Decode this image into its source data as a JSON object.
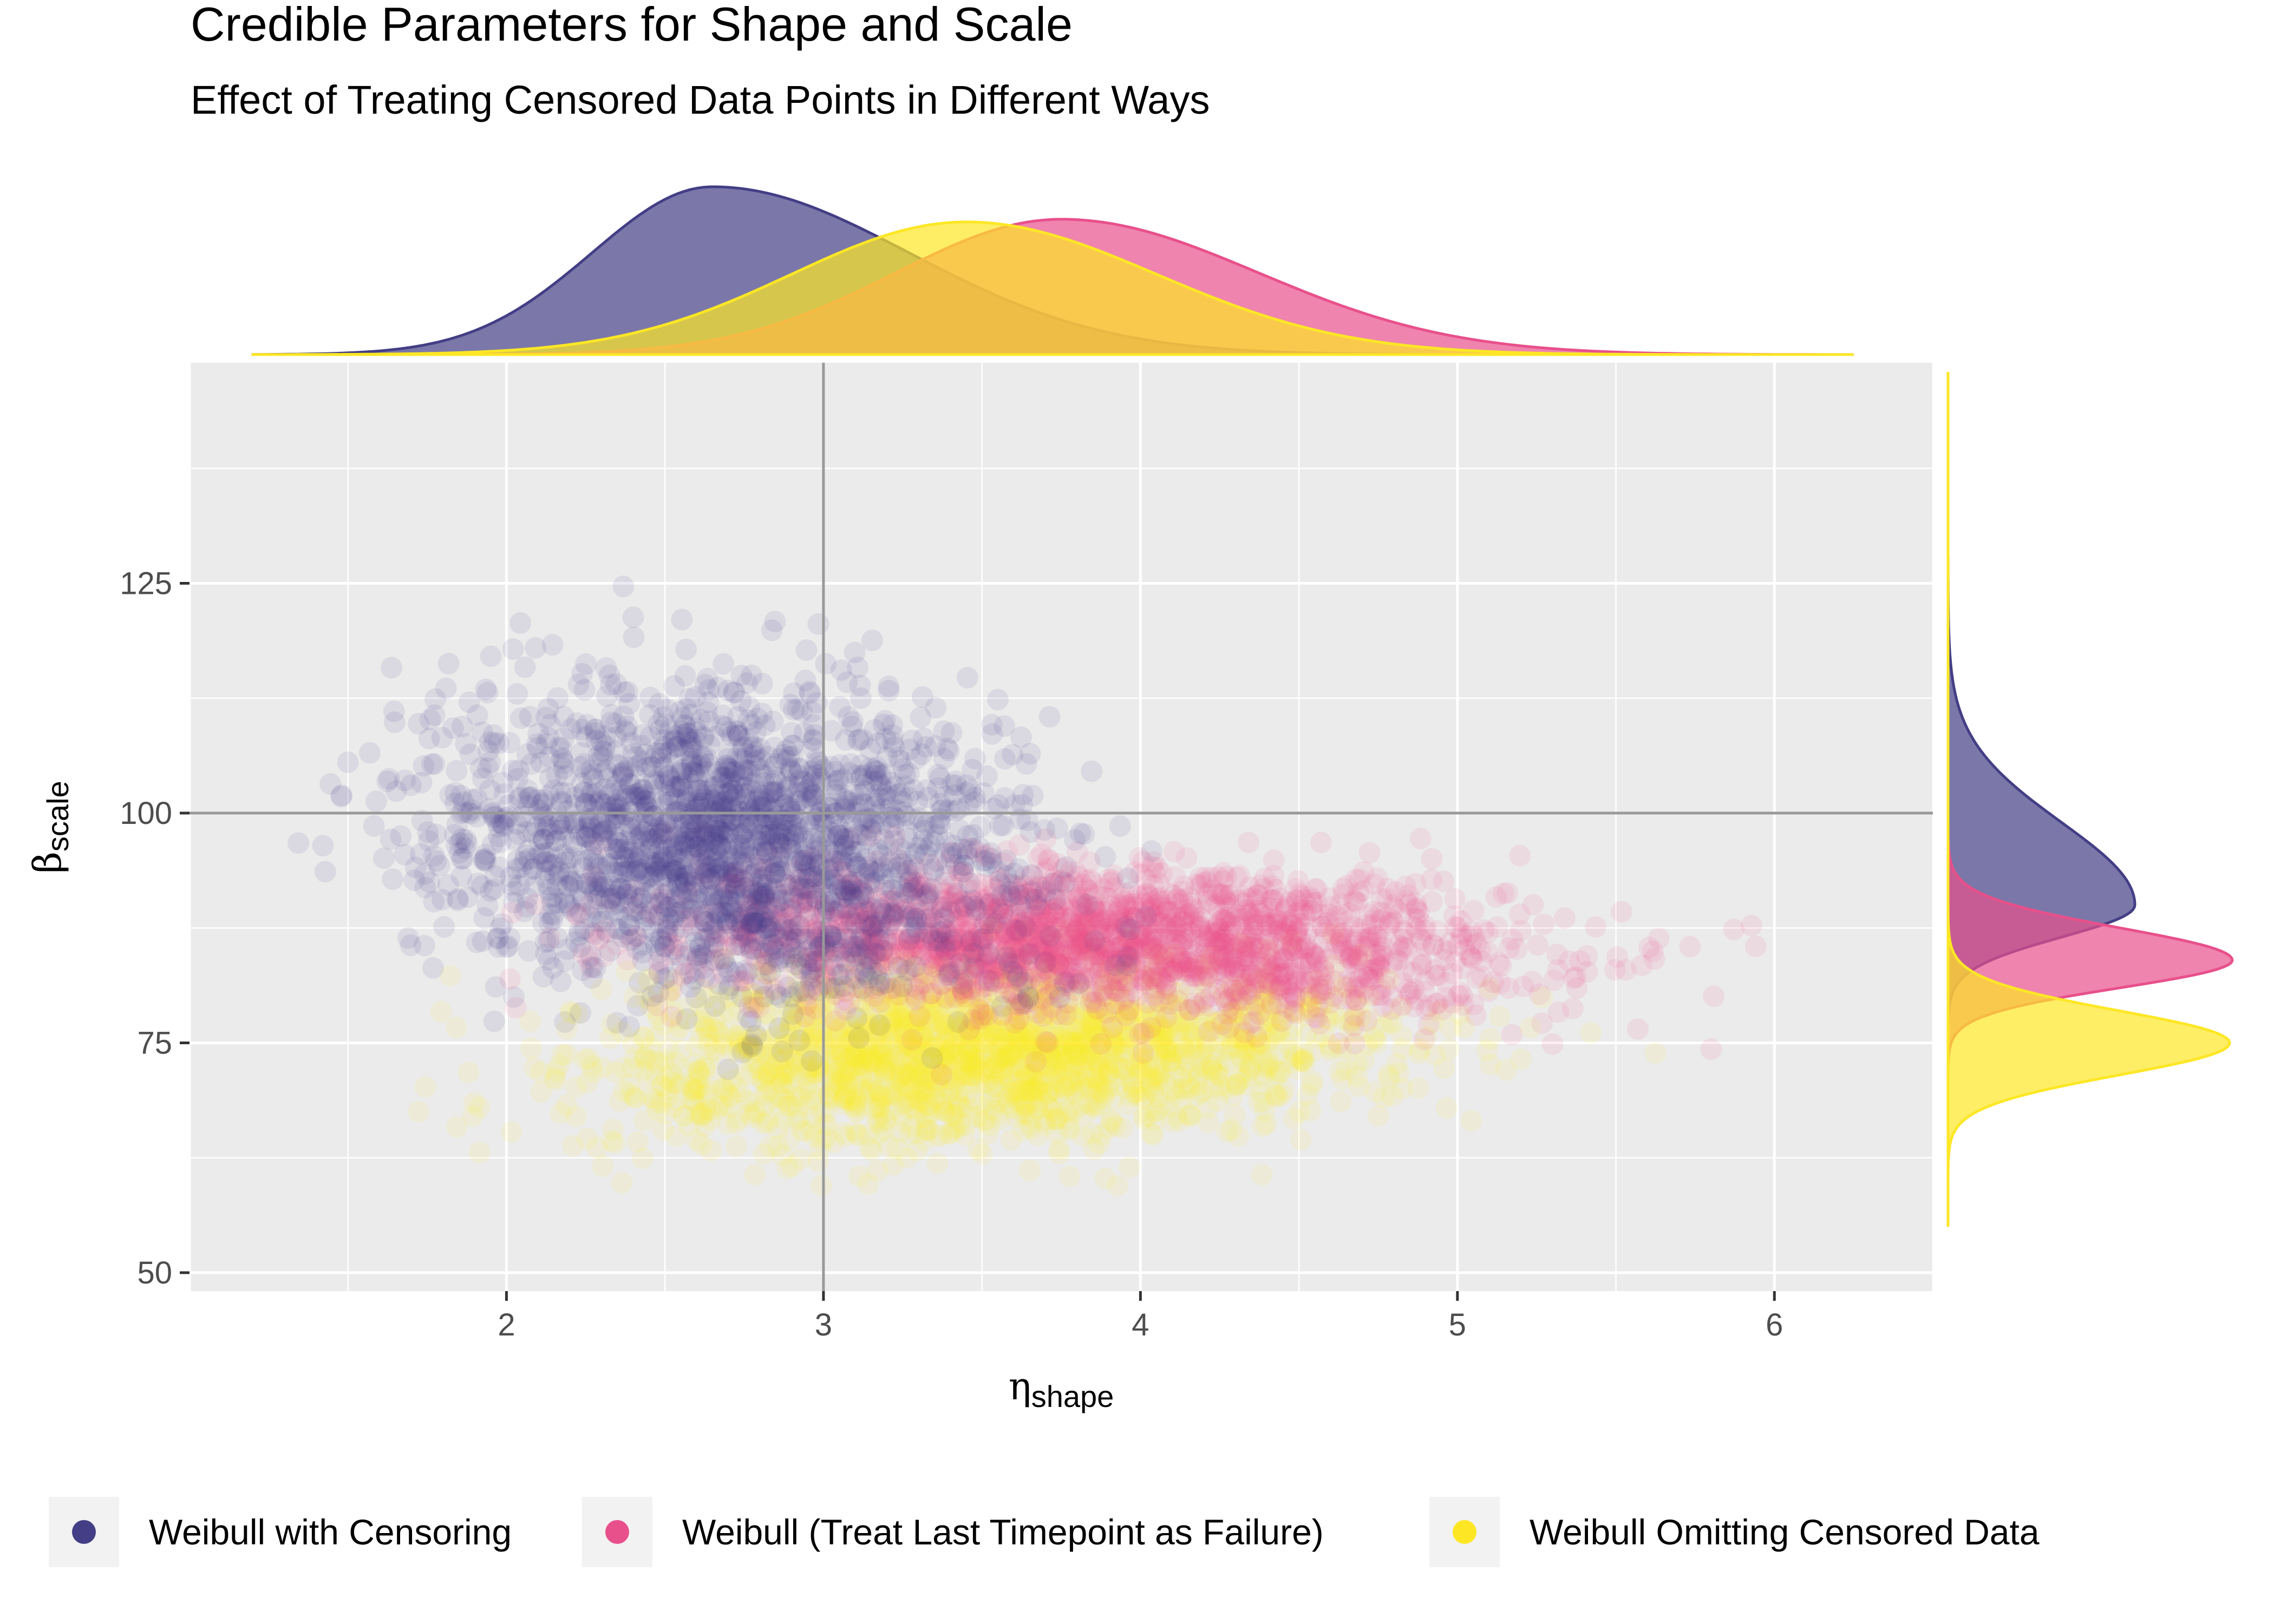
{
  "chart_data": {
    "type": "scatter",
    "title": "Credible Parameters for Shape and Scale",
    "subtitle": "Effect of Treating Censored Data Points in Different Ways",
    "xlabel": {
      "symbol": "η",
      "sub": "shape"
    },
    "ylabel": {
      "symbol": "β",
      "sub": "scale"
    },
    "xlim": [
      1.0,
      6.5
    ],
    "ylim": [
      48,
      149
    ],
    "x_ticks": [
      2,
      3,
      4,
      5,
      6
    ],
    "y_ticks": [
      50,
      75,
      100,
      125
    ],
    "reference_lines": {
      "x": 3,
      "y": 100
    },
    "grid": true,
    "legend_position": "bottom",
    "series": [
      {
        "name": "Weibull with Censoring",
        "color": "#433e85",
        "x_mean": 2.7,
        "x_sd": 0.45,
        "x_range": [
          1.3,
          4.6
        ],
        "y_mean": 97,
        "y_sd": 8,
        "y_range": [
          72,
          145
        ],
        "x_density_peak": 2.65,
        "y_density_peak": 90
      },
      {
        "name": "Weibull (Treat Last Timepoint as Failure)",
        "color": "#e8508b",
        "x_mean": 3.85,
        "x_sd": 0.65,
        "x_range": [
          2.0,
          6.3
        ],
        "y_mean": 86,
        "y_sd": 4,
        "y_range": [
          70,
          98
        ],
        "x_density_peak": 3.75,
        "y_density_peak": 84
      },
      {
        "name": "Weibull Omitting Censored Data",
        "color": "#fde725",
        "x_mean": 3.5,
        "x_sd": 0.6,
        "x_range": [
          1.6,
          6.2
        ],
        "y_mean": 74,
        "y_sd": 4.5,
        "y_range": [
          54,
          88
        ],
        "x_density_peak": 3.45,
        "y_density_peak": 75
      }
    ]
  }
}
